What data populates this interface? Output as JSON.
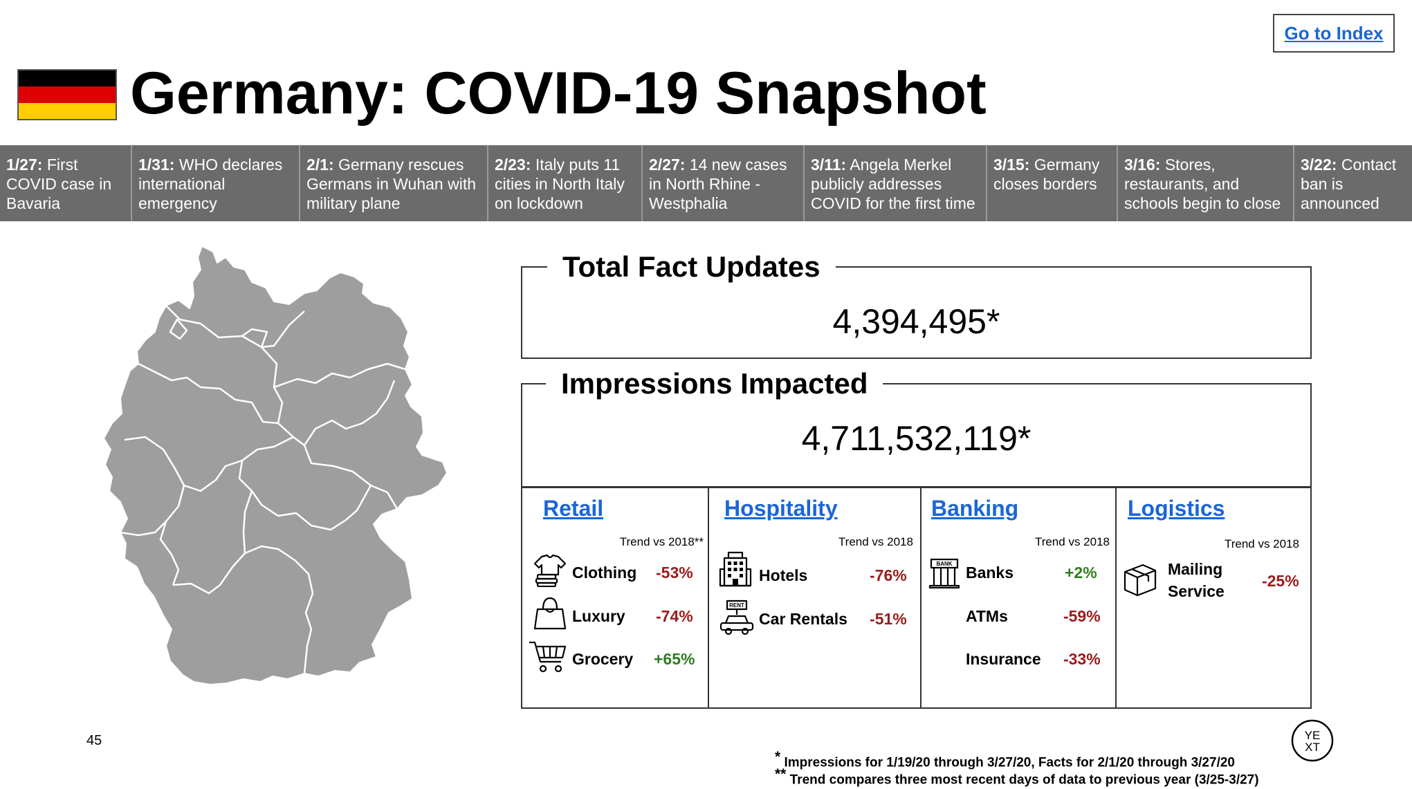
{
  "header": {
    "go_to_index": "Go to Index",
    "title": "Germany: COVID-19 Snapshot",
    "flag_colors": [
      "#000000",
      "#dd0000",
      "#ffce00"
    ]
  },
  "timeline": [
    {
      "date": "1/27:",
      "text": " First COVID case in Bavaria"
    },
    {
      "date": "1/31:",
      "text": " WHO declares international emergency"
    },
    {
      "date": "2/1:",
      "text": " Germany rescues Germans in Wuhan with military plane"
    },
    {
      "date": "2/23:",
      "text": " Italy puts 11 cities in North Italy on lockdown"
    },
    {
      "date": "2/27:",
      "text": " 14 new cases in North Rhine - Westphalia"
    },
    {
      "date": "3/11:",
      "text": " Angela Merkel publicly addresses COVID for the first time"
    },
    {
      "date": "3/15:",
      "text": " Germany closes borders"
    },
    {
      "date": "3/16:",
      "text": " Stores, restaurants, and schools begin to close"
    },
    {
      "date": "3/22:",
      "text": " Contact ban is announced"
    }
  ],
  "facts": {
    "total_label": "Total Fact Updates",
    "total_value": "4,394,495*",
    "impressions_label": "Impressions Impacted",
    "impressions_value": "4,711,532,119*"
  },
  "categories": {
    "retail": {
      "title": "Retail",
      "trend": "Trend vs 2018**",
      "rows": [
        {
          "name": "Clothing",
          "value": "-53%",
          "icon": "clothing-icon"
        },
        {
          "name": "Luxury",
          "value": "-74%",
          "icon": "handbag-icon"
        },
        {
          "name": "Grocery",
          "value": "+65%",
          "icon": "shopping-cart-icon"
        }
      ]
    },
    "hospitality": {
      "title": "Hospitality",
      "trend": "Trend vs 2018",
      "rows": [
        {
          "name": "Hotels",
          "value": "-76%",
          "icon": "hotel-icon"
        },
        {
          "name": "Car Rentals",
          "value": "-51%",
          "icon": "car-rental-icon",
          "icon_text": "RENT"
        }
      ]
    },
    "banking": {
      "title": "Banking",
      "trend": "Trend vs 2018",
      "rows": [
        {
          "name": "Banks",
          "value": "+2%",
          "icon": "bank-icon",
          "icon_text": "BANK"
        },
        {
          "name": "ATMs",
          "value": "-59%"
        },
        {
          "name": "Insurance",
          "value": "-33%"
        }
      ]
    },
    "logistics": {
      "title": "Logistics",
      "trend": "Trend vs 2018",
      "rows": [
        {
          "name_line1": "Mailing",
          "name_line2": "Service",
          "value": "-25%",
          "icon": "package-icon"
        }
      ]
    },
    "colors": {
      "negative": "#9b1b1b",
      "positive": "#2e7d1e",
      "link": "#1a66d6"
    }
  },
  "footer": {
    "page_number": "45",
    "note1_mark": "*",
    "note1": " Impressions for 1/19/20 through 3/27/20, Facts for 2/1/20 through 3/27/20",
    "note2_mark": "**",
    "note2": " Trend compares three most recent days of data to previous year (3/25-3/27)",
    "logo_line1": "YE",
    "logo_line2": "XT"
  }
}
